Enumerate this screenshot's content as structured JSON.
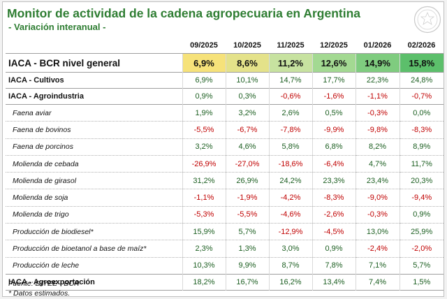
{
  "title": "Monitor de actividad de la cadena agropecuaria en Argentina",
  "subtitle": "- Variación interanual -",
  "periods": [
    "09/2025",
    "10/2025",
    "11/2025",
    "12/2025",
    "01/2026",
    "02/2026"
  ],
  "heat_colors": [
    "#f6e27a",
    "#e4e28a",
    "#c7e2a0",
    "#a3d992",
    "#7fcc7f",
    "#5cbf6b"
  ],
  "rows": [
    {
      "label": "IACA - BCR nivel general",
      "kind": "top",
      "values": [
        "6,9%",
        "8,6%",
        "11,2%",
        "12,6%",
        "14,9%",
        "15,8%"
      ]
    },
    {
      "label": "IACA - Cultivos",
      "kind": "main",
      "values": [
        "6,9%",
        "10,1%",
        "14,7%",
        "17,7%",
        "22,3%",
        "24,8%"
      ]
    },
    {
      "label": "IACA - Agroindustria",
      "kind": "main",
      "values": [
        "0,9%",
        "0,3%",
        "-0,6%",
        "-1,6%",
        "-1,1%",
        "-0,7%"
      ]
    },
    {
      "label": "Faena aviar",
      "kind": "sub",
      "values": [
        "1,9%",
        "3,2%",
        "2,6%",
        "0,5%",
        "-0,3%",
        "0,0%"
      ]
    },
    {
      "label": "Faena de bovinos",
      "kind": "sub",
      "values": [
        "-5,5%",
        "-6,7%",
        "-7,8%",
        "-9,9%",
        "-9,8%",
        "-8,3%"
      ]
    },
    {
      "label": "Faena de porcinos",
      "kind": "sub",
      "values": [
        "3,2%",
        "4,6%",
        "5,8%",
        "6,8%",
        "8,2%",
        "8,9%"
      ]
    },
    {
      "label": "Molienda de cebada",
      "kind": "sub",
      "values": [
        "-26,9%",
        "-27,0%",
        "-18,6%",
        "-6,4%",
        "4,7%",
        "11,7%"
      ]
    },
    {
      "label": "Molienda de girasol",
      "kind": "sub",
      "values": [
        "31,2%",
        "26,9%",
        "24,2%",
        "23,3%",
        "23,4%",
        "20,3%"
      ]
    },
    {
      "label": "Molienda de soja",
      "kind": "sub",
      "values": [
        "-1,1%",
        "-1,9%",
        "-4,2%",
        "-8,3%",
        "-9,0%",
        "-9,4%"
      ]
    },
    {
      "label": "Molienda de trigo",
      "kind": "sub",
      "values": [
        "-5,3%",
        "-5,5%",
        "-4,6%",
        "-2,6%",
        "-0,3%",
        "0,9%"
      ]
    },
    {
      "label": "Producción de biodiesel*",
      "kind": "sub",
      "values": [
        "15,9%",
        "5,7%",
        "-12,9%",
        "-4,5%",
        "13,0%",
        "25,9%"
      ]
    },
    {
      "label": "Producción de bioetanol a base de maíz*",
      "kind": "sub",
      "values": [
        "2,3%",
        "1,3%",
        "3,0%",
        "0,9%",
        "-2,4%",
        "-2,0%"
      ]
    },
    {
      "label": "Producción de leche",
      "kind": "sub",
      "values": [
        "10,3%",
        "9,9%",
        "8,7%",
        "7,8%",
        "7,1%",
        "5,7%"
      ]
    },
    {
      "label": "IACA - Agroexportación",
      "kind": "main",
      "values": [
        "18,2%",
        "16,7%",
        "16,2%",
        "13,4%",
        "7,4%",
        "1,5%"
      ]
    }
  ],
  "source": "Fuente: DIYEE - BCR",
  "note": "* Datos estimados.",
  "seal_icon": "bcr-seal-icon"
}
